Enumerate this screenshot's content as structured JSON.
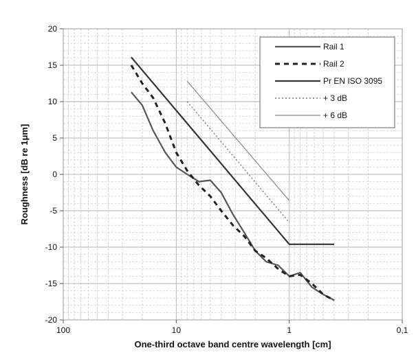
{
  "chart_data": {
    "type": "line",
    "title": "",
    "xlabel": "One-third octave band centre wavelength [cm]",
    "ylabel": "Roughness [dB re 1μm]",
    "x_scale": "log",
    "x_reversed": true,
    "xlim": [
      100,
      0.1
    ],
    "ylim": [
      -20,
      20
    ],
    "x_ticks": [
      100,
      10,
      1,
      0.1
    ],
    "x_tick_labels": [
      "100",
      "10",
      "1",
      "0,1"
    ],
    "y_ticks": [
      -20,
      -15,
      -10,
      -5,
      0,
      5,
      10,
      15,
      20
    ],
    "y_tick_labels": [
      "-20",
      "-15",
      "-10",
      "-5",
      "0",
      "5",
      "10",
      "15",
      "20"
    ],
    "grid": true,
    "legend_position": "top-right",
    "series": [
      {
        "name": "Rail 1",
        "color": "#555555",
        "dash": "solid",
        "x": [
          25,
          20,
          16,
          12.5,
          10,
          8,
          6.3,
          5,
          4,
          3.15,
          2.5,
          2,
          1.6,
          1.25,
          1,
          0.8,
          0.63,
          0.5,
          0.4
        ],
        "y": [
          11.3,
          9.5,
          6.0,
          3.0,
          1.0,
          0.0,
          -1.0,
          -0.8,
          -2.5,
          -5.5,
          -8.0,
          -10.5,
          -12.0,
          -12.5,
          -14.0,
          -13.5,
          -15.5,
          -16.5,
          -17.3
        ]
      },
      {
        "name": "Rail 2",
        "color": "#222222",
        "dash": "dashed",
        "x": [
          25,
          20,
          16,
          12.5,
          10,
          8,
          6.3,
          5,
          4,
          3.15,
          2.5,
          2,
          1.6,
          1.25,
          1,
          0.8,
          0.63,
          0.5,
          0.4
        ],
        "y": [
          15.0,
          12.5,
          10.5,
          7.0,
          3.0,
          0.5,
          -1.5,
          -3.0,
          -5.0,
          -7.0,
          -8.5,
          -10.5,
          -11.5,
          -13.0,
          -14.0,
          -13.8,
          -15.0,
          -16.5,
          -17.3
        ]
      },
      {
        "name": "Pr EN ISO 3095",
        "color": "#333333",
        "dash": "solid",
        "x": [
          25,
          1,
          0.4
        ],
        "y": [
          16.1,
          -9.6,
          -9.6
        ]
      },
      {
        "name": "+ 3 dB",
        "color": "#777777",
        "dash": "dotted",
        "x": [
          8,
          1
        ],
        "y": [
          10.0,
          -6.6
        ]
      },
      {
        "name": "+ 6 dB",
        "color": "#888888",
        "dash": "solid-thin",
        "x": [
          8,
          1
        ],
        "y": [
          12.8,
          -3.6
        ]
      }
    ]
  }
}
